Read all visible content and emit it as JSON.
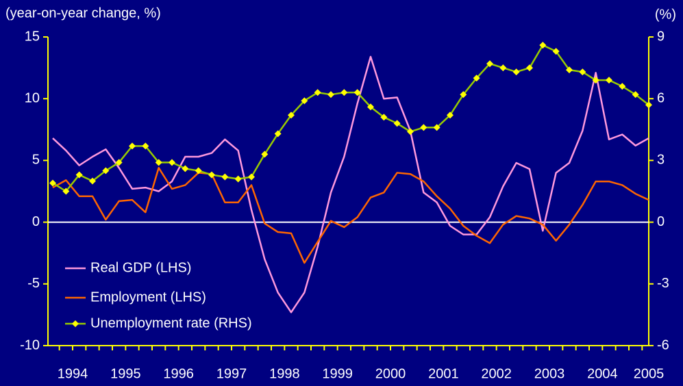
{
  "chart_data": {
    "type": "line",
    "ylabel": "(year-on-year change, %)",
    "y2label": "(%)",
    "year_labels": [
      "1994",
      "1995",
      "1996",
      "1997",
      "1998",
      "1999",
      "2000",
      "2001",
      "2002",
      "2003",
      "2004",
      "2005"
    ],
    "ylim": [
      -10,
      15
    ],
    "yticks": [
      -10,
      -5,
      0,
      5,
      10,
      15
    ],
    "y2lim": [
      -6,
      9
    ],
    "y2ticks": [
      -6,
      -3,
      0,
      3,
      6,
      9
    ],
    "legend": "lower left",
    "series": [
      {
        "name": "Real GDP (LHS)",
        "color": "#ff99dd",
        "values": [
          6.8,
          5.8,
          4.6,
          5.3,
          5.9,
          4.4,
          2.7,
          2.8,
          2.5,
          3.3,
          5.3,
          5.3,
          5.6,
          6.7,
          5.8,
          1.0,
          -3.0,
          -5.7,
          -7.3,
          -5.7,
          -2.0,
          2.4,
          5.3,
          9.6,
          13.4,
          10.0,
          10.1,
          7.4,
          2.4,
          1.6,
          -0.3,
          -1.0,
          -1.0,
          0.4,
          2.9,
          4.8,
          4.3,
          -0.7,
          4.0,
          4.8,
          7.4,
          12.1,
          6.7,
          7.1,
          6.2,
          6.8
        ]
      },
      {
        "name": "Employment (LHS)",
        "color": "#ff6600",
        "values": [
          2.8,
          3.4,
          2.1,
          2.1,
          0.2,
          1.7,
          1.8,
          0.8,
          4.4,
          2.7,
          3.0,
          4.0,
          3.9,
          1.6,
          1.6,
          3.0,
          -0.1,
          -0.8,
          -0.9,
          -3.3,
          -1.6,
          0.1,
          -0.4,
          0.4,
          2.0,
          2.4,
          4.0,
          3.9,
          3.3,
          2.1,
          1.1,
          -0.3,
          -1.1,
          -1.7,
          -0.2,
          0.5,
          0.3,
          -0.2,
          -1.5,
          -0.2,
          1.4,
          3.3,
          3.3,
          3.0,
          2.3,
          1.8
        ]
      },
      {
        "name": "Unemployment rate (RHS)",
        "color": "#99cc00",
        "marker_color": "#ffff00",
        "axis": "y2",
        "values": [
          1.9,
          1.5,
          2.3,
          2.0,
          2.5,
          2.9,
          3.7,
          3.7,
          2.9,
          2.9,
          2.6,
          2.5,
          2.3,
          2.2,
          2.1,
          2.2,
          3.3,
          4.3,
          5.2,
          5.9,
          6.3,
          6.2,
          6.3,
          6.3,
          5.6,
          5.1,
          4.8,
          4.4,
          4.6,
          4.6,
          5.2,
          6.2,
          7.0,
          7.7,
          7.5,
          7.3,
          7.5,
          8.6,
          8.3,
          7.4,
          7.3,
          6.9,
          6.9,
          6.6,
          6.2,
          5.7
        ]
      }
    ]
  }
}
